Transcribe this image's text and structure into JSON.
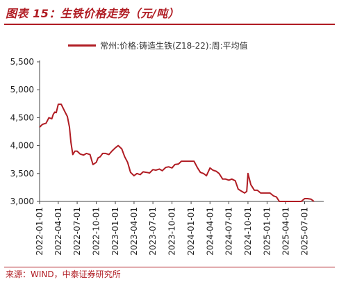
{
  "header": {
    "title": "图表 15：生铁价格走势（元/吨）"
  },
  "footer": {
    "source": "来源：WIND，中泰证券研究所"
  },
  "colors": {
    "accent": "#b01c23",
    "series": "#b01c23"
  },
  "chart_data": {
    "type": "line",
    "legend": "top",
    "grid": false,
    "ylim": [
      3000,
      5500
    ],
    "yticks": [
      3000,
      3500,
      4000,
      4500,
      5000,
      5500
    ],
    "ytick_labels": [
      "3,000",
      "3,500",
      "4,000",
      "4,500",
      "5,000",
      "5,500"
    ],
    "xticks": [
      "2022-01-01",
      "2022-04-01",
      "2022-07-01",
      "2022-10-01",
      "2023-01-01",
      "2023-04-01",
      "2023-07-01",
      "2023-10-01",
      "2024-01-01",
      "2024-04-01",
      "2024-07-01",
      "2024-10-01",
      "2025-01-01",
      "2025-04-01",
      "2025-07-01"
    ],
    "series": [
      {
        "name": "常州:价格:铸造生铁(Z18-22):周:平均值",
        "x": [
          "2022-01-01",
          "2022-01-15",
          "2022-02-01",
          "2022-02-15",
          "2022-03-01",
          "2022-03-08",
          "2022-03-15",
          "2022-03-22",
          "2022-04-01",
          "2022-04-15",
          "2022-05-01",
          "2022-05-15",
          "2022-05-25",
          "2022-06-01",
          "2022-06-10",
          "2022-06-20",
          "2022-07-01",
          "2022-07-15",
          "2022-08-01",
          "2022-08-15",
          "2022-09-01",
          "2022-09-15",
          "2022-10-01",
          "2022-10-10",
          "2022-10-20",
          "2022-11-01",
          "2022-11-15",
          "2022-12-01",
          "2022-12-15",
          "2023-01-01",
          "2023-01-15",
          "2023-02-01",
          "2023-02-15",
          "2023-03-01",
          "2023-03-15",
          "2023-04-01",
          "2023-04-15",
          "2023-05-01",
          "2023-05-15",
          "2023-06-01",
          "2023-06-15",
          "2023-07-01",
          "2023-07-15",
          "2023-08-01",
          "2023-08-15",
          "2023-09-01",
          "2023-09-15",
          "2023-10-01",
          "2023-10-15",
          "2023-11-01",
          "2023-11-15",
          "2023-12-01",
          "2023-12-15",
          "2024-01-01",
          "2024-01-15",
          "2024-02-01",
          "2024-02-15",
          "2024-03-01",
          "2024-03-15",
          "2024-04-01",
          "2024-04-15",
          "2024-05-01",
          "2024-05-15",
          "2024-06-01",
          "2024-06-15",
          "2024-07-01",
          "2024-07-15",
          "2024-08-01",
          "2024-08-15",
          "2024-09-01",
          "2024-09-15",
          "2024-09-25",
          "2024-10-01",
          "2024-10-08",
          "2024-10-15",
          "2024-11-01",
          "2024-11-15",
          "2024-12-01",
          "2024-12-15",
          "2025-01-01",
          "2025-01-15",
          "2025-02-01",
          "2025-02-15",
          "2025-03-01",
          "2025-03-15",
          "2025-04-01",
          "2025-04-15",
          "2025-05-01",
          "2025-05-15",
          "2025-06-01",
          "2025-06-15",
          "2025-07-01",
          "2025-07-15",
          "2025-08-01",
          "2025-08-15"
        ],
        "values": [
          4330,
          4380,
          4400,
          4500,
          4480,
          4560,
          4600,
          4590,
          4740,
          4740,
          4620,
          4520,
          4330,
          4060,
          3840,
          3900,
          3900,
          3850,
          3830,
          3860,
          3840,
          3660,
          3700,
          3780,
          3800,
          3860,
          3860,
          3840,
          3900,
          3960,
          4000,
          3940,
          3800,
          3700,
          3520,
          3460,
          3500,
          3480,
          3530,
          3520,
          3510,
          3570,
          3560,
          3580,
          3550,
          3610,
          3620,
          3600,
          3660,
          3670,
          3720,
          3720,
          3720,
          3720,
          3720,
          3600,
          3520,
          3500,
          3460,
          3600,
          3560,
          3540,
          3500,
          3400,
          3400,
          3380,
          3400,
          3370,
          3220,
          3180,
          3150,
          3180,
          3500,
          3400,
          3300,
          3200,
          3200,
          3150,
          3150,
          3150,
          3150,
          3100,
          3080,
          3000,
          3000,
          3000,
          3000,
          3000,
          3000,
          3000,
          3000,
          3050,
          3050,
          3040,
          3000
        ]
      }
    ]
  }
}
